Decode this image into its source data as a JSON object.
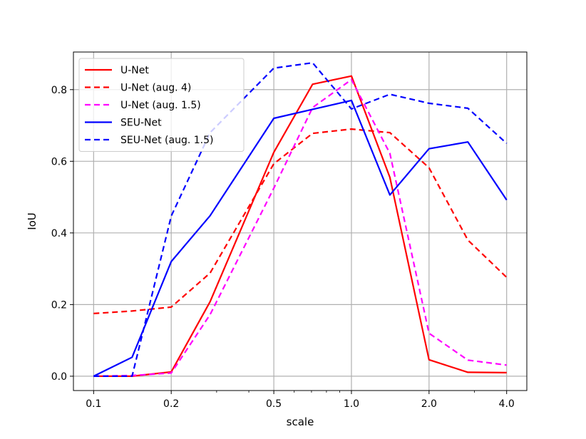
{
  "chart_data": {
    "type": "line",
    "xlabel": "scale",
    "ylabel": "IoU",
    "x_scale": "log",
    "x": [
      0.1,
      0.141,
      0.2,
      0.283,
      0.5,
      0.707,
      1.0,
      1.41,
      2.0,
      2.83,
      4.0
    ],
    "x_tick_labels": [
      "0.1",
      "0.2",
      "0.5",
      "1.0",
      "2.0",
      "4.0"
    ],
    "x_tick_values": [
      0.1,
      0.2,
      0.5,
      1.0,
      2.0,
      4.0
    ],
    "y_tick_labels": [
      "0.0",
      "0.2",
      "0.4",
      "0.6",
      "0.8"
    ],
    "y_tick_values": [
      0.0,
      0.2,
      0.4,
      0.6,
      0.8
    ],
    "ylim": [
      -0.04,
      0.905
    ],
    "xlim": [
      0.0835,
      4.79
    ],
    "grid": true,
    "legend_position": "upper-left",
    "series": [
      {
        "name": "U-Net",
        "color": "#ff0000",
        "dashed": false,
        "values": [
          0.0,
          0.0,
          0.012,
          0.208,
          0.625,
          0.815,
          0.838,
          0.555,
          0.046,
          0.011,
          0.01
        ]
      },
      {
        "name": "U-Net (aug. 4)",
        "color": "#ff0000",
        "dashed": true,
        "values": [
          0.175,
          0.182,
          0.193,
          0.288,
          0.593,
          0.678,
          0.69,
          0.68,
          0.582,
          0.38,
          0.276
        ]
      },
      {
        "name": "U-Net (aug. 1.5)",
        "color": "#ff00ff",
        "dashed": true,
        "values": [
          0.0,
          0.002,
          0.009,
          0.172,
          0.525,
          0.75,
          0.828,
          0.622,
          0.12,
          0.045,
          0.031
        ]
      },
      {
        "name": "SEU-Net",
        "color": "#0000ff",
        "dashed": false,
        "values": [
          0.0,
          0.053,
          0.32,
          0.448,
          0.72,
          0.745,
          0.77,
          0.506,
          0.635,
          0.654,
          0.492
        ]
      },
      {
        "name": "SEU-Net (aug. 1.5)",
        "color": "#0000ff",
        "dashed": true,
        "values": [
          0.0,
          0.0,
          0.447,
          0.68,
          0.86,
          0.875,
          0.746,
          0.787,
          0.762,
          0.748,
          0.65
        ]
      }
    ]
  }
}
